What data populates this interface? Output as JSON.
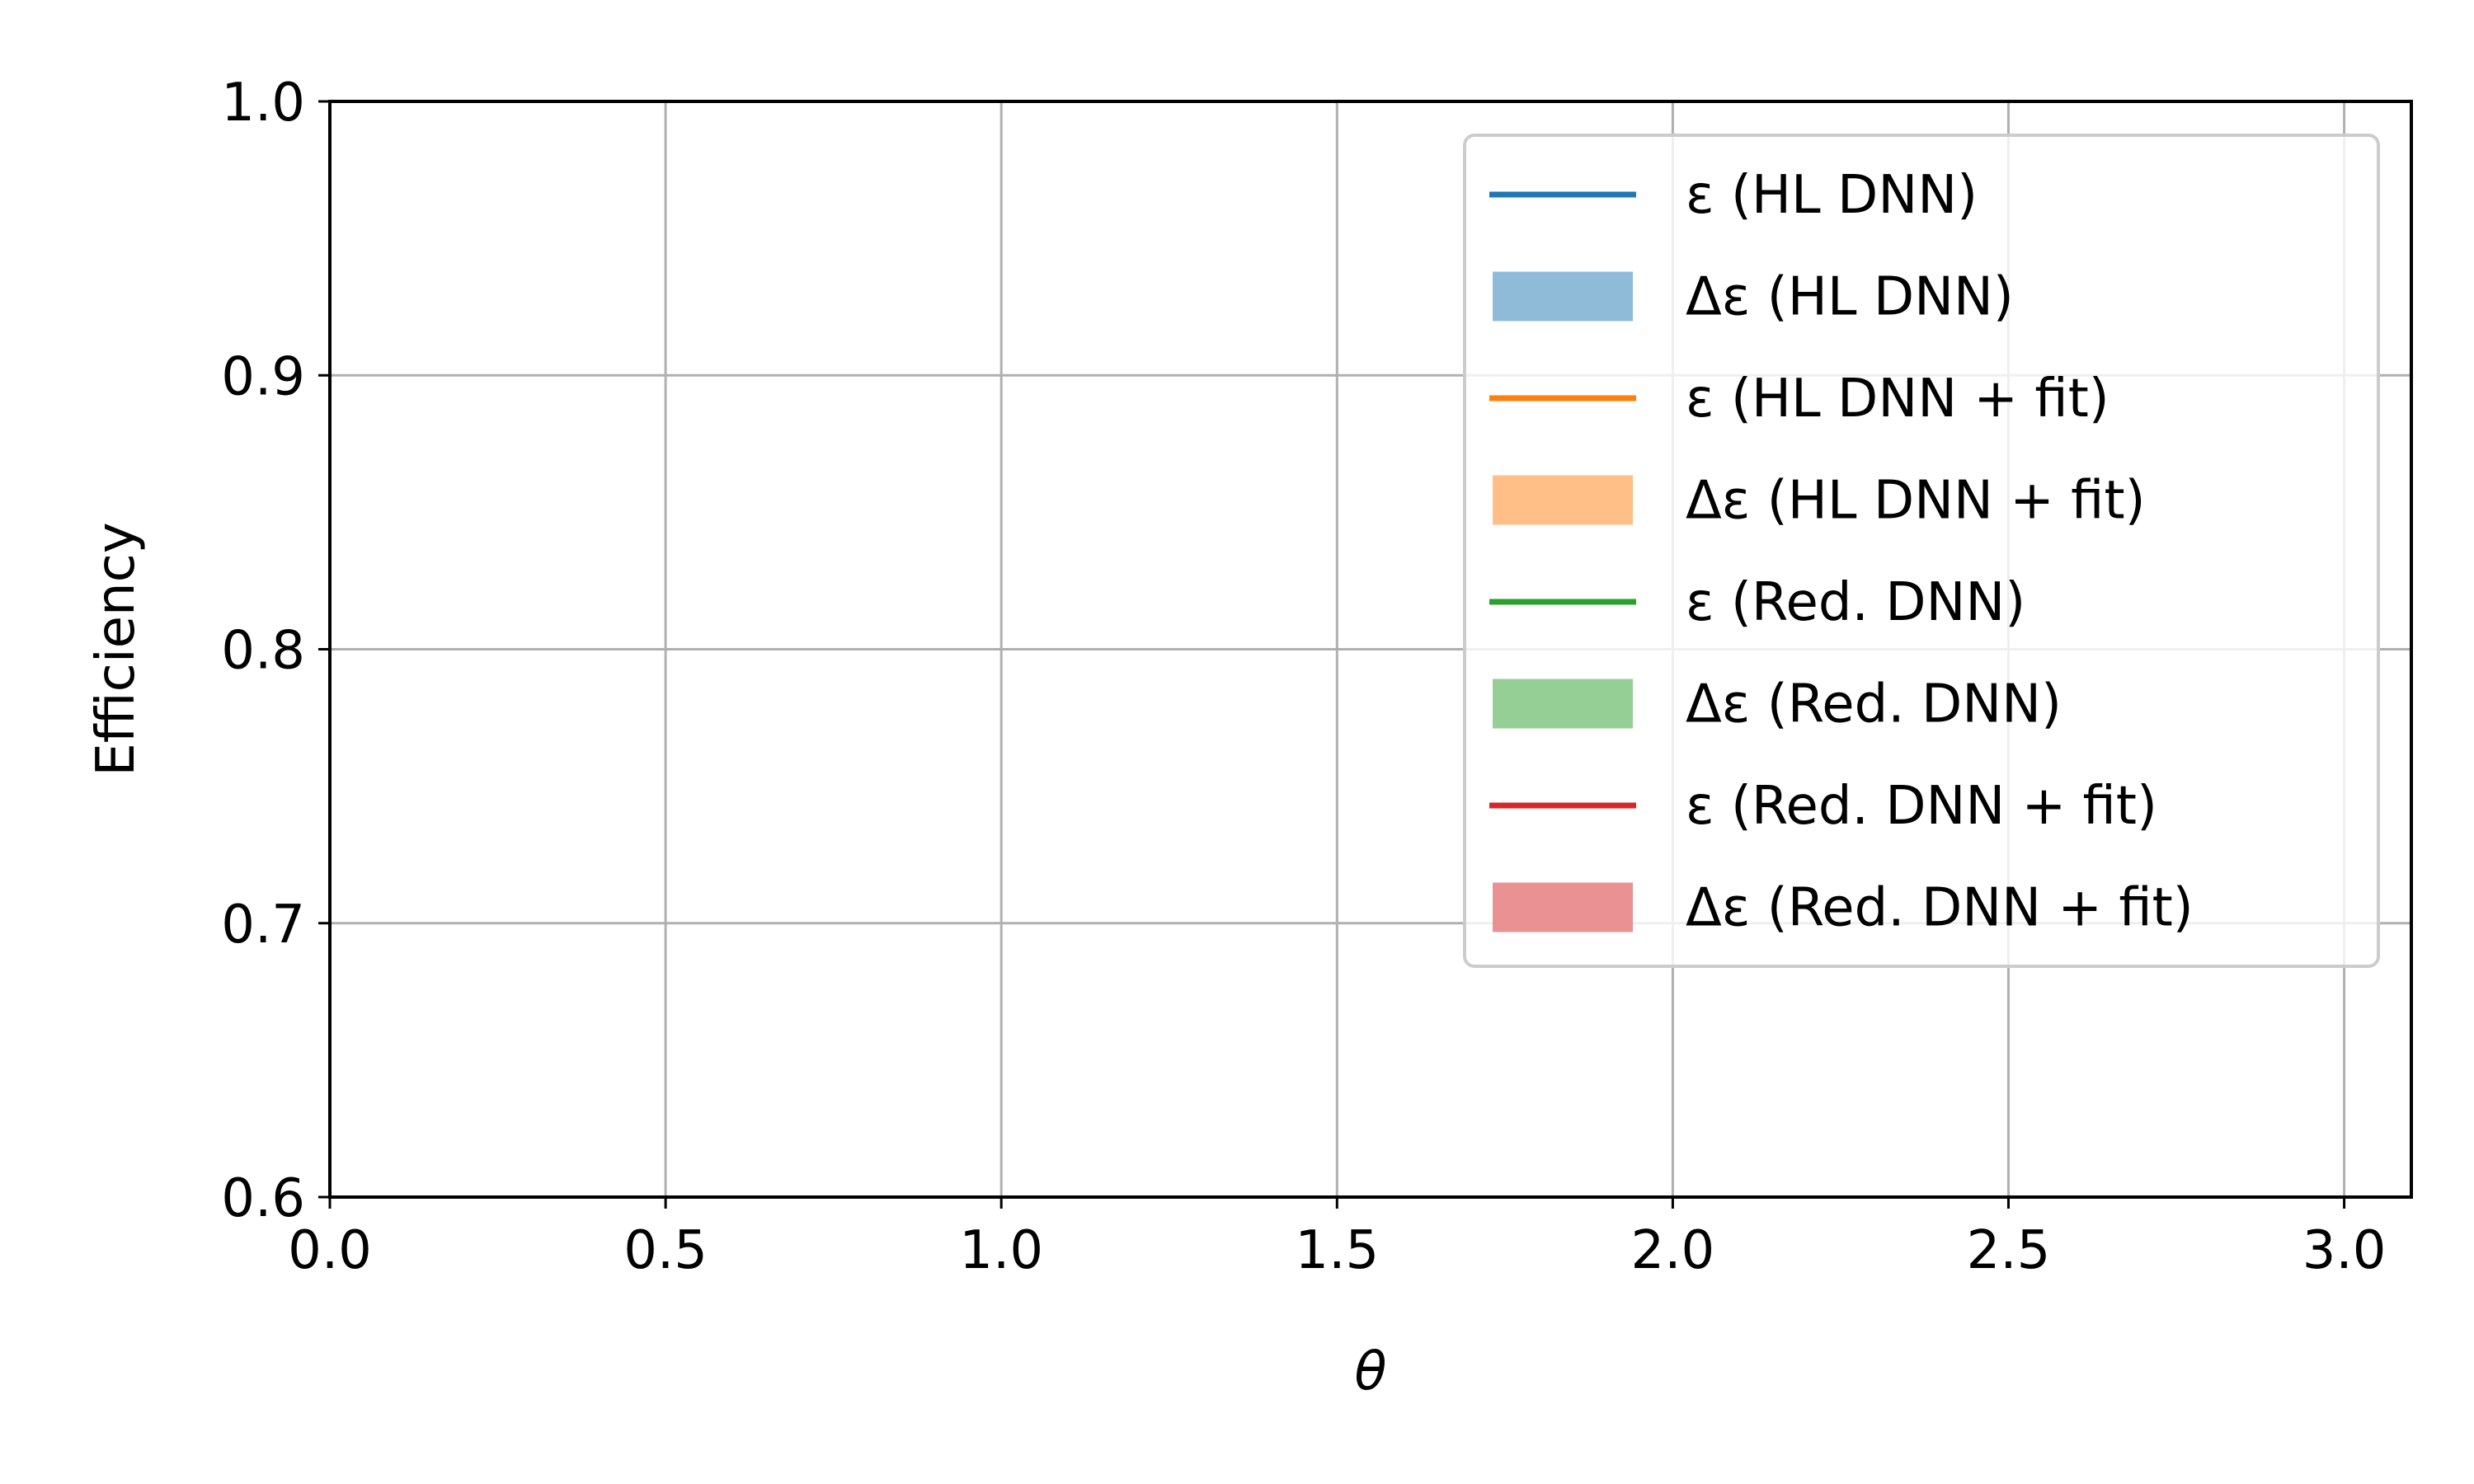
{
  "chart_data": {
    "type": "line",
    "title": "",
    "xlabel": "θ",
    "ylabel": "Efficiency",
    "xlim": [
      0.0,
      3.1
    ],
    "ylim": [
      0.6,
      1.0
    ],
    "x_ticks": [
      0.0,
      0.5,
      1.0,
      1.5,
      2.0,
      2.5,
      3.0
    ],
    "x_tick_labels": [
      "0.0",
      "0.5",
      "1.0",
      "1.5",
      "2.0",
      "2.5",
      "3.0"
    ],
    "y_ticks": [
      0.6,
      0.7,
      0.8,
      0.9,
      1.0
    ],
    "y_tick_labels": [
      "0.6",
      "0.7",
      "0.8",
      "0.9",
      "1.0"
    ],
    "grid": true,
    "legend_position": "top-right",
    "series": [
      {
        "name": "ε (HL DNN)",
        "kind": "line",
        "color": "#1f77b4",
        "x": [],
        "y": []
      },
      {
        "name": "Δε (HL DNN)",
        "kind": "band",
        "color": "#8fbbd9",
        "x": [],
        "y_low": [],
        "y_high": []
      },
      {
        "name": "ε (HL DNN + fit)",
        "kind": "line",
        "color": "#ff7f0e",
        "x": [],
        "y": []
      },
      {
        "name": "Δε (HL DNN + fit)",
        "kind": "band",
        "color": "#ffbf86",
        "x": [],
        "y_low": [],
        "y_high": []
      },
      {
        "name": "ε (Red. DNN)",
        "kind": "line",
        "color": "#2ca02c",
        "x": [],
        "y": []
      },
      {
        "name": "Δε (Red. DNN)",
        "kind": "band",
        "color": "#96cf96",
        "x": [],
        "y_low": [],
        "y_high": []
      },
      {
        "name": "ε (Red. DNN + fit)",
        "kind": "line",
        "color": "#d62728",
        "x": [],
        "y": []
      },
      {
        "name": "Δε (Red. DNN + fit)",
        "kind": "band",
        "color": "#ea9293",
        "x": [],
        "y_low": [],
        "y_high": []
      }
    ]
  }
}
